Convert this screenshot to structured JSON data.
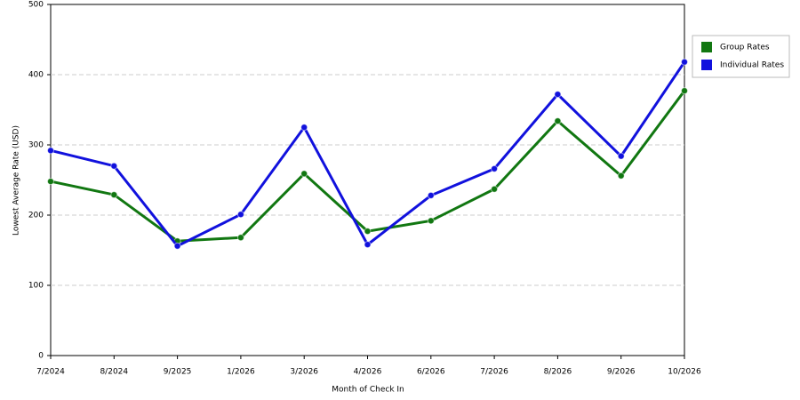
{
  "chart_data": {
    "type": "line",
    "x_label": "Month of Check In",
    "y_label": "Lowest Average Rate (USD)",
    "categories": [
      "7/2024",
      "8/2024",
      "9/2025",
      "1/2026",
      "3/2026",
      "4/2026",
      "6/2026",
      "7/2026",
      "8/2026",
      "9/2026",
      "10/2026"
    ],
    "series": [
      {
        "name": "Group Rates",
        "color": "#117711",
        "values": [
          248,
          229,
          163,
          168,
          259,
          177,
          192,
          237,
          334,
          256,
          377
        ]
      },
      {
        "name": "Individual Rates",
        "color": "#1111dd",
        "values": [
          292,
          270,
          156,
          201,
          325,
          158,
          228,
          266,
          372,
          284,
          418
        ]
      }
    ],
    "ylim": [
      0,
      500
    ],
    "yticks": [
      0,
      100,
      200,
      300,
      400,
      500
    ],
    "grid": true,
    "legend": "right"
  }
}
